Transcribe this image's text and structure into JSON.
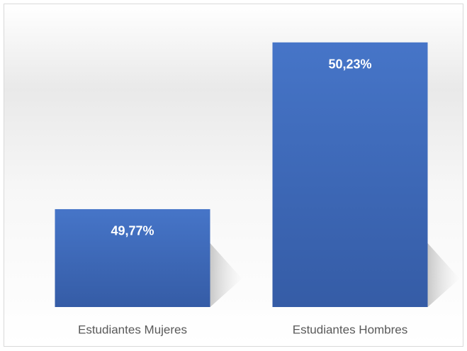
{
  "chart_data": {
    "type": "bar",
    "categories": [
      "Estudiantes Mujeres",
      "Estudiantes Hombres"
    ],
    "values": [
      49.77,
      50.23
    ],
    "value_labels": [
      "49,77%",
      "50,23%"
    ],
    "color": "#4472c4",
    "ylim": [
      49.5,
      50.3
    ]
  }
}
